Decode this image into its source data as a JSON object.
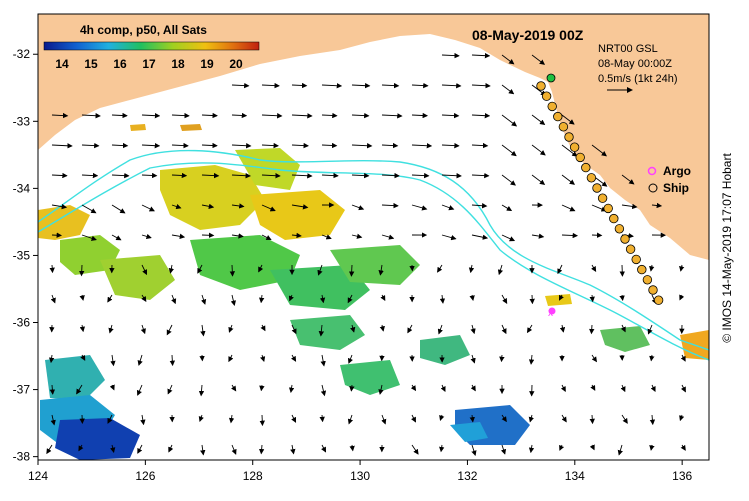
{
  "title": "08-May-2019 00Z",
  "colorbar": {
    "title": "4h comp, p50, All Sats",
    "ticks": [
      "14",
      "15",
      "16",
      "17",
      "18",
      "19",
      "20"
    ],
    "colors": [
      "#0a1a8c",
      "#1060d0",
      "#20b0e0",
      "#20c060",
      "#a0d020",
      "#f0c010",
      "#e07010",
      "#c02010"
    ]
  },
  "nrt": {
    "line1": "NRT00 GSL",
    "line2": "08-May 00:00Z",
    "line3": "0.5m/s (1kt 24h)"
  },
  "legend": {
    "argo": "Argo",
    "ship": "Ship"
  },
  "axes": {
    "x_ticks": [
      "124",
      "126",
      "128",
      "130",
      "132",
      "134",
      "136"
    ],
    "y_ticks": [
      "-32",
      "-33",
      "-34",
      "-35",
      "-36",
      "-37",
      "-38"
    ],
    "lon_range": [
      124,
      136.5
    ],
    "lat_range": [
      -38.05,
      -31.4
    ]
  },
  "credit": "© IMOS 14-May-2019 17:07 Hobart",
  "colors": {
    "land": "#f8c898",
    "sea": "#ffffff",
    "contour": "#40e0e0",
    "ship": "#f0b030",
    "argo": "#ff40ff"
  }
}
